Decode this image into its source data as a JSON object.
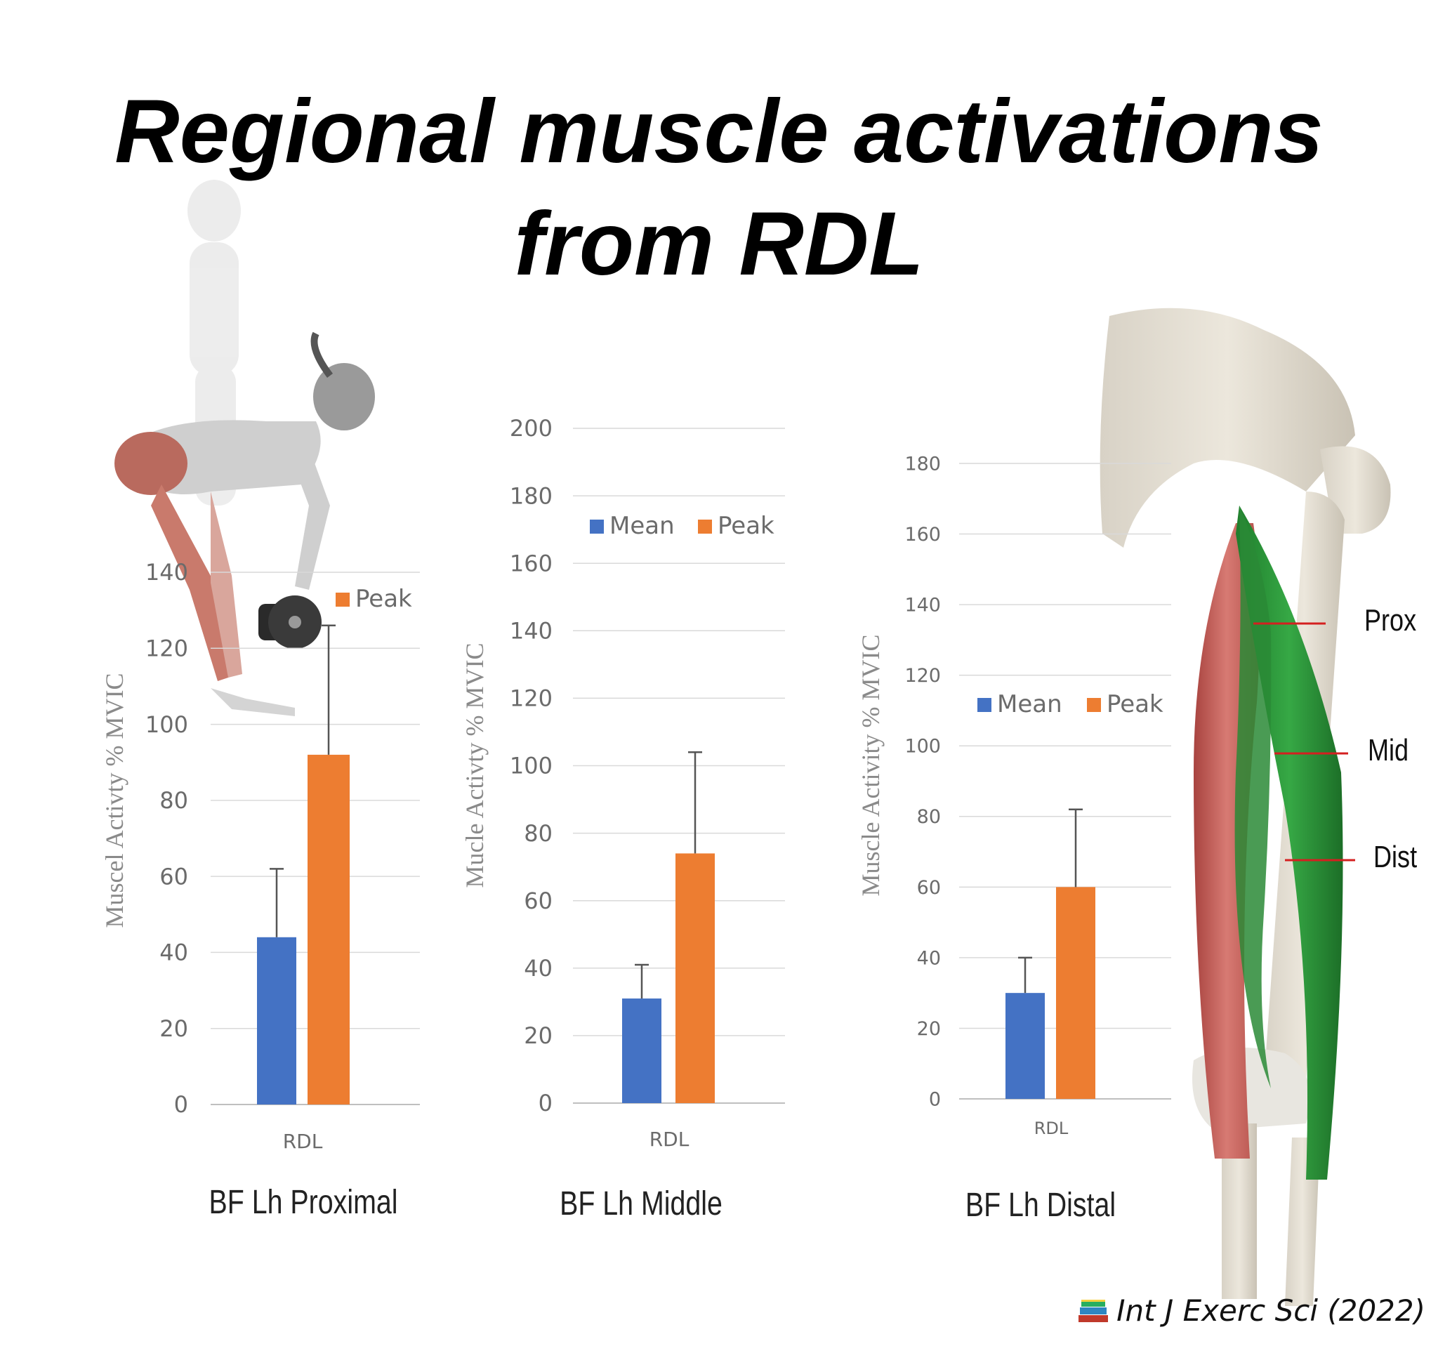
{
  "title_line1": "Regional muscle activations",
  "title_line2": "from RDL",
  "source": "Int J Exerc Sci (2022)",
  "source_icon": "books-icon",
  "muscle_regions": [
    "Prox",
    "Mid",
    "Dist"
  ],
  "colors": {
    "mean": "#4472c4",
    "peak": "#ed7d31",
    "muscle_green": "#2e9e3c",
    "muscle_red": "#c0504d",
    "marker": "#d42020"
  },
  "chart_data": [
    {
      "type": "bar",
      "categories": [
        "RDL"
      ],
      "series": [
        {
          "name": "Mean",
          "values": [
            44
          ],
          "error": [
            18
          ]
        },
        {
          "name": "Peak",
          "values": [
            92
          ],
          "error": [
            34
          ]
        }
      ],
      "legend_visible": [
        "Peak"
      ],
      "legend": "top-right",
      "ylabel": "Muscel Activty % MVIC",
      "caption": "BF Lh Proximal",
      "ylim": [
        0,
        140
      ],
      "yticks": [
        0,
        20,
        40,
        60,
        80,
        100,
        120,
        140
      ],
      "grid": true
    },
    {
      "type": "bar",
      "categories": [
        "RDL"
      ],
      "series": [
        {
          "name": "Mean",
          "values": [
            31
          ],
          "error": [
            10
          ]
        },
        {
          "name": "Peak",
          "values": [
            74
          ],
          "error": [
            30
          ]
        }
      ],
      "legend_visible": [
        "Mean",
        "Peak"
      ],
      "legend": "top",
      "ylabel": "Mucle Activty % MVIC",
      "caption": "BF Lh Middle",
      "ylim": [
        0,
        200
      ],
      "yticks": [
        0,
        20,
        40,
        60,
        80,
        100,
        120,
        140,
        160,
        180,
        200
      ],
      "grid": true
    },
    {
      "type": "bar",
      "categories": [
        "RDL"
      ],
      "series": [
        {
          "name": "Mean",
          "values": [
            30
          ],
          "error": [
            10
          ]
        },
        {
          "name": "Peak",
          "values": [
            60
          ],
          "error": [
            22
          ]
        }
      ],
      "legend_visible": [
        "Mean",
        "Peak"
      ],
      "legend": "top",
      "ylabel": "Muscle Activity % MVIC",
      "caption": "BF Lh Distal",
      "ylim": [
        0,
        180
      ],
      "yticks": [
        0,
        20,
        40,
        60,
        80,
        100,
        120,
        140,
        160,
        180
      ],
      "grid": true
    }
  ]
}
